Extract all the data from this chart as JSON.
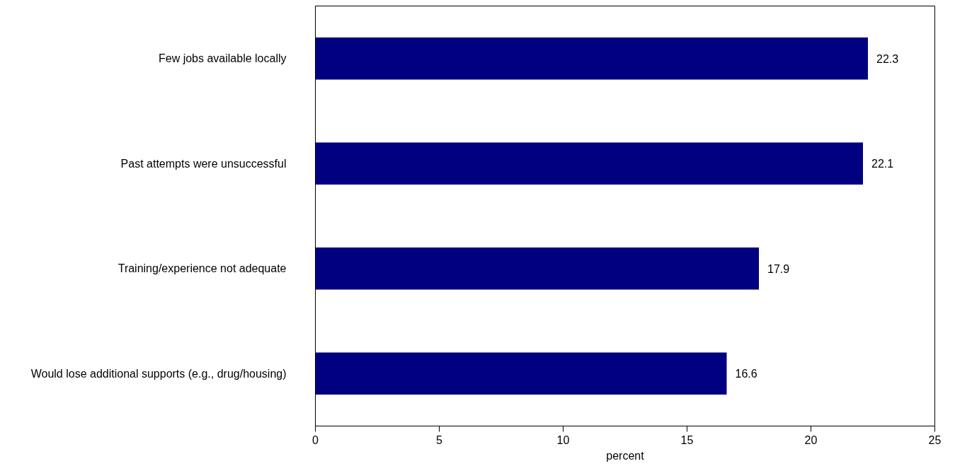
{
  "chart_data": {
    "type": "bar",
    "orientation": "horizontal",
    "xlabel": "percent",
    "categories": [
      "Few jobs available locally",
      "Past attempts were unsuccessful",
      "Training/experience not adequate",
      "Would lose additional supports (e.g., drug/housing)"
    ],
    "values": [
      22.3,
      22.1,
      17.9,
      16.6
    ],
    "color": "#000080",
    "xlim": [
      0,
      25
    ],
    "xticks": [
      0,
      5,
      10,
      15,
      20,
      25
    ],
    "grid": false,
    "data_labels": true
  }
}
